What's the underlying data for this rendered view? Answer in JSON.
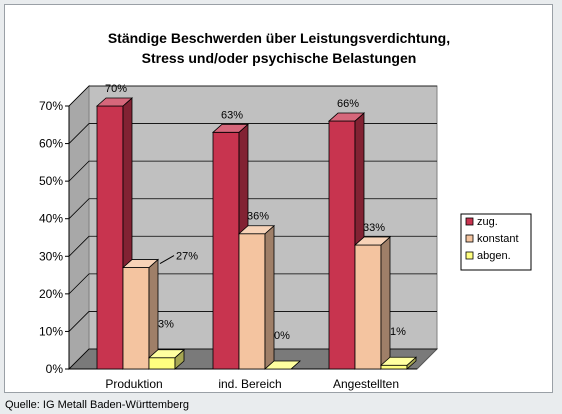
{
  "source": "Quelle: IG Metall Baden-Württemberg",
  "chart_data": {
    "type": "bar",
    "title": "Ständige Beschwerden über Leistungsverdichtung, Stress und/oder psychische Belastungen",
    "title_lines": [
      "Ständige Beschwerden über Leistungsverdichtung,",
      "Stress und/oder psychische Belastungen"
    ],
    "categories": [
      "Produktion",
      "ind. Bereich",
      "Angestellten"
    ],
    "series": [
      {
        "name": "zug.",
        "values": [
          70,
          63,
          66
        ],
        "color": "#c8344f",
        "labels": [
          "70%",
          "63%",
          "66%"
        ]
      },
      {
        "name": "konstant",
        "values": [
          27,
          36,
          33
        ],
        "color": "#f4c4a0",
        "labels": [
          "27%",
          "36%",
          "33%"
        ]
      },
      {
        "name": "abgen.",
        "values": [
          3,
          0,
          1
        ],
        "color": "#ffff80",
        "labels": [
          "3%",
          "0%",
          "1%"
        ]
      }
    ],
    "yticks": [
      "0%",
      "10%",
      "20%",
      "30%",
      "40%",
      "50%",
      "60%",
      "70%"
    ],
    "ylim": [
      0,
      70
    ],
    "grid": true,
    "legend_position": "right",
    "style": "3d-columns"
  }
}
